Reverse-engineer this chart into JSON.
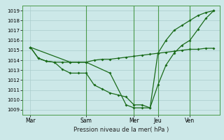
{
  "xlabel": "Pression niveau de la mer( hPa )",
  "background_color": "#cce8e8",
  "grid_color": "#aacccc",
  "line_color": "#1a6b1a",
  "ylim": [
    1008.5,
    1019.5
  ],
  "yticks": [
    1009,
    1010,
    1011,
    1012,
    1013,
    1014,
    1015,
    1016,
    1017,
    1018,
    1019
  ],
  "vline_positions": [
    0.333,
    0.583,
    0.708,
    0.875
  ],
  "xtick_positions": [
    0.042,
    0.333,
    0.583,
    0.708,
    0.875,
    1.0
  ],
  "xtick_labels": [
    "Mar",
    "Sam",
    "Mer",
    "Jeu",
    "Ven",
    ""
  ],
  "line1_x": [
    0.042,
    0.083,
    0.125,
    0.167,
    0.208,
    0.25,
    0.292,
    0.333,
    0.375,
    0.417,
    0.458,
    0.5,
    0.542,
    0.583,
    0.625,
    0.667,
    0.708,
    0.75,
    0.792,
    0.833,
    0.875,
    0.917,
    0.958,
    1.0
  ],
  "line1_y": [
    1015.3,
    1014.2,
    1013.9,
    1013.8,
    1013.8,
    1013.8,
    1013.8,
    1013.8,
    1014.0,
    1014.1,
    1014.1,
    1014.2,
    1014.3,
    1014.4,
    1014.5,
    1014.6,
    1014.7,
    1014.8,
    1014.9,
    1015.0,
    1015.1,
    1015.1,
    1015.2,
    1015.2
  ],
  "line2_x": [
    0.042,
    0.083,
    0.125,
    0.167,
    0.208,
    0.25,
    0.292,
    0.333,
    0.375,
    0.417,
    0.458,
    0.5,
    0.542,
    0.583,
    0.625,
    0.667,
    0.708,
    0.75,
    0.792,
    0.833,
    0.875,
    0.917,
    0.958,
    1.0
  ],
  "line2_y": [
    1015.3,
    1014.2,
    1013.9,
    1013.8,
    1013.1,
    1012.7,
    1012.7,
    1012.7,
    1011.5,
    1011.1,
    1010.7,
    1010.5,
    1010.3,
    1009.5,
    1009.5,
    1009.2,
    1011.5,
    1013.5,
    1014.7,
    1015.5,
    1016.0,
    1017.1,
    1018.2,
    1019.0
  ],
  "line3_x": [
    0.042,
    0.25,
    0.333,
    0.458,
    0.542,
    0.583,
    0.625,
    0.667,
    0.708,
    0.75,
    0.792,
    0.833,
    0.875,
    0.917,
    0.958,
    1.0
  ],
  "line3_y": [
    1015.3,
    1013.8,
    1013.8,
    1012.7,
    1009.5,
    1009.2,
    1009.2,
    1009.2,
    1014.7,
    1016.0,
    1017.0,
    1017.5,
    1018.0,
    1018.5,
    1018.8,
    1019.0
  ]
}
